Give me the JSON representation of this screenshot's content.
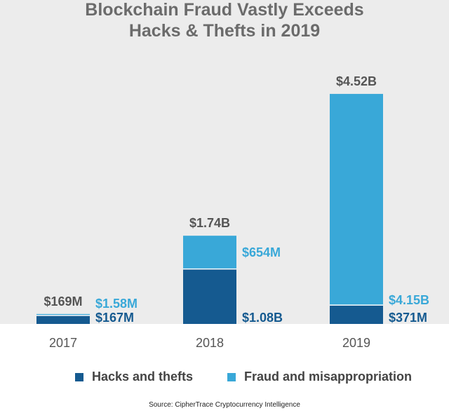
{
  "title": [
    "Blockchain Fraud Vastly Exceeds",
    "Hacks & Thefts in 2019"
  ],
  "colors": {
    "hacks": "#155a90",
    "fraud": "#39a8d8",
    "total_label": "#555555",
    "background": "#ececec"
  },
  "chart_data": {
    "type": "bar",
    "stacked": true,
    "title": "Blockchain Fraud Vastly Exceeds Hacks & Thefts in 2019",
    "categories": [
      "2017",
      "2018",
      "2019"
    ],
    "series": [
      {
        "name": "Hacks and thefts",
        "values": [
          167,
          1080,
          371
        ],
        "labels": [
          "$167M",
          "$1.08B",
          "$371M"
        ]
      },
      {
        "name": "Fraud and misappropriation",
        "values": [
          1.58,
          654,
          4150
        ],
        "labels": [
          "$1.58M",
          "$654M",
          "$4.15B"
        ]
      }
    ],
    "totals": {
      "values": [
        169,
        1740,
        4520
      ],
      "labels": [
        "$169M",
        "$1.74B",
        "$4.52B"
      ]
    },
    "units": "USD millions",
    "ylim": [
      0,
      4520
    ],
    "grid": false,
    "legend": "bottom"
  },
  "legend": [
    "Hacks and thefts",
    "Fraud and misappropriation"
  ],
  "source": "Source: CipherTrace Cryptocurrency Intelligence"
}
